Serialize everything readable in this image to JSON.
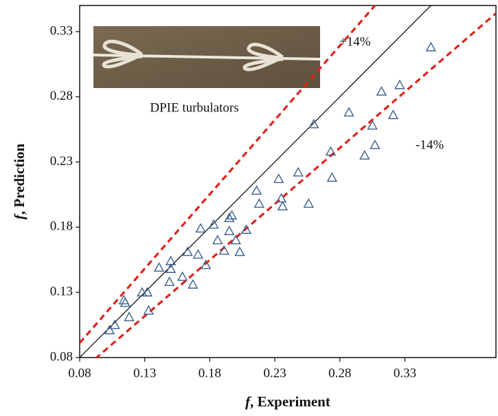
{
  "chart_data": {
    "type": "scatter",
    "xlabel": "f, Experiment",
    "ylabel": "f, Prediction",
    "xlim": [
      0.08,
      0.4
    ],
    "ylim": [
      0.08,
      0.35
    ],
    "xticks": [
      0.08,
      0.13,
      0.18,
      0.23,
      0.28,
      0.33
    ],
    "yticks": [
      0.08,
      0.13,
      0.18,
      0.23,
      0.28,
      0.33
    ],
    "marker_color": "#3b5f8f",
    "reference_color": "#e3211c",
    "x": [
      0.103,
      0.107,
      0.114,
      0.115,
      0.118,
      0.128,
      0.132,
      0.133,
      0.141,
      0.149,
      0.15,
      0.15,
      0.159,
      0.163,
      0.167,
      0.171,
      0.173,
      0.177,
      0.183,
      0.186,
      0.191,
      0.195,
      0.195,
      0.197,
      0.2,
      0.203,
      0.208,
      0.216,
      0.218,
      0.233,
      0.235,
      0.236,
      0.248,
      0.256,
      0.26,
      0.273,
      0.274,
      0.287,
      0.299,
      0.305,
      0.307,
      0.312,
      0.321,
      0.326,
      0.35
    ],
    "values": [
      0.101,
      0.105,
      0.124,
      0.122,
      0.111,
      0.13,
      0.13,
      0.116,
      0.149,
      0.138,
      0.148,
      0.154,
      0.142,
      0.161,
      0.136,
      0.159,
      0.179,
      0.151,
      0.182,
      0.17,
      0.162,
      0.177,
      0.187,
      0.189,
      0.17,
      0.161,
      0.178,
      0.208,
      0.198,
      0.217,
      0.202,
      0.196,
      0.222,
      0.198,
      0.259,
      0.238,
      0.218,
      0.268,
      0.235,
      0.258,
      0.243,
      0.284,
      0.266,
      0.289,
      0.318
    ],
    "annotations": [
      {
        "text": "+14%",
        "value": 14
      },
      {
        "text": "-14%",
        "value": -14
      }
    ],
    "inset_caption": "DPIE turbulators"
  }
}
